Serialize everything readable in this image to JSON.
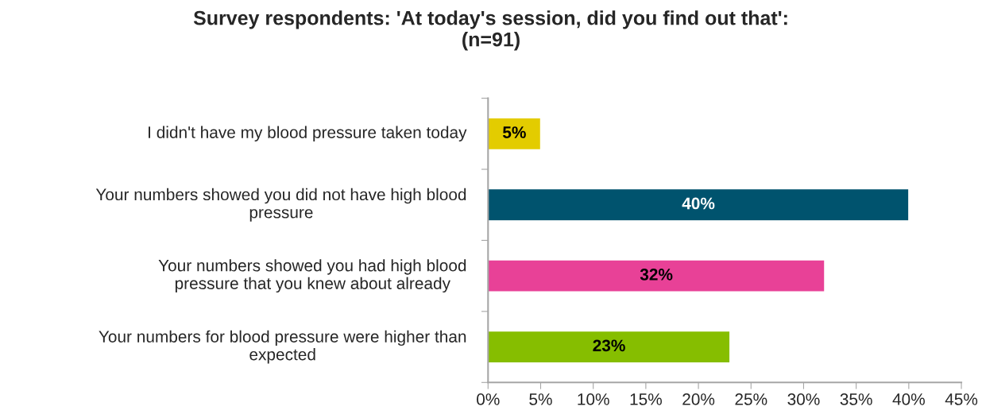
{
  "chart_data": {
    "type": "bar",
    "orientation": "horizontal",
    "title": "Survey respondents: 'At today's session, did you find out that':\n(n=91)",
    "categories": [
      "I didn't have my blood pressure taken today",
      "Your numbers showed you did not have high blood\npressure",
      "Your numbers showed you had high blood\npressure that you knew about already",
      "Your numbers for blood pressure were higher than\nexpected"
    ],
    "values": [
      5,
      40,
      32,
      23
    ],
    "colors": [
      "#e3cc00",
      "#00536e",
      "#e84197",
      "#86be00"
    ],
    "value_labels": [
      "5%",
      "40%",
      "32%",
      "23%"
    ],
    "xlim": [
      0,
      45
    ],
    "xticks": [
      {
        "value": 0,
        "label": "0%"
      },
      {
        "value": 5,
        "label": "5%"
      },
      {
        "value": 10,
        "label": "10%"
      },
      {
        "value": 15,
        "label": "15%"
      },
      {
        "value": 20,
        "label": "20%"
      },
      {
        "value": 25,
        "label": "25%"
      },
      {
        "value": 30,
        "label": "30%"
      },
      {
        "value": 35,
        "label": "35%"
      },
      {
        "value": 40,
        "label": "40%"
      },
      {
        "value": 45,
        "label": "45%"
      }
    ],
    "grid": false,
    "legend": false
  }
}
